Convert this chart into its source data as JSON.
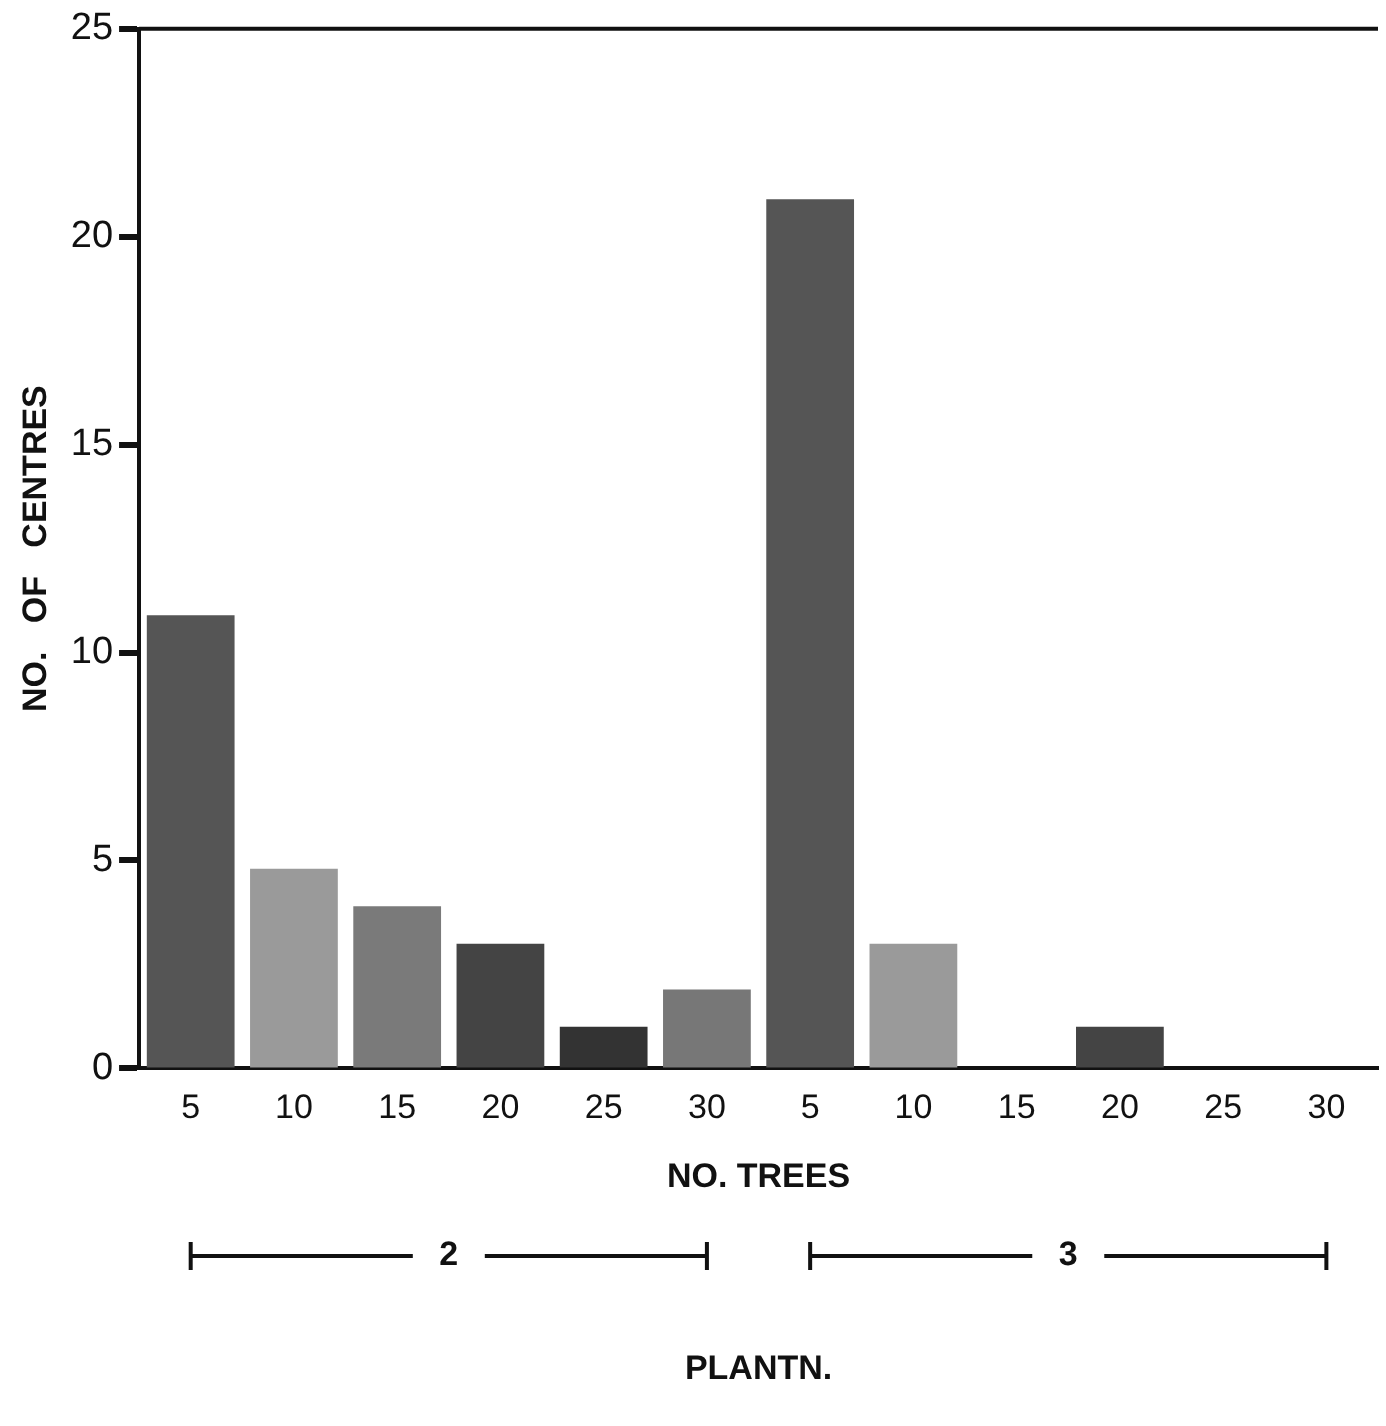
{
  "chart_data": {
    "type": "bar",
    "categories": [
      "5",
      "10",
      "15",
      "20",
      "25",
      "30",
      "5",
      "10",
      "15",
      "20",
      "25",
      "30"
    ],
    "values": [
      10.9,
      4.8,
      3.9,
      3.0,
      1.0,
      1.9,
      20.9,
      3.0,
      0,
      1.0,
      0,
      0
    ],
    "colors": [
      "#555555",
      "#9a9a9a",
      "#7a7a7a",
      "#444444",
      "#333333",
      "#777777",
      "#555555",
      "#9a9a9a",
      "#7a7a7a",
      "#444444",
      "#333333",
      "#777777"
    ],
    "xlabel": "NO. TREES",
    "ylabel": "NO.   OF   CENTRES",
    "ylim": [
      0,
      25
    ],
    "yticks": [
      0,
      5,
      10,
      15,
      20,
      25
    ],
    "grid": false,
    "legend": false,
    "annotations": [
      "2",
      "3",
      "PLANTN."
    ]
  }
}
